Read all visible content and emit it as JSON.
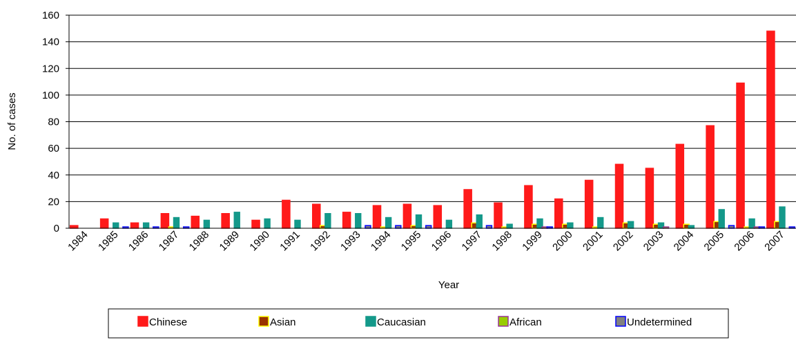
{
  "chart_data": {
    "type": "bar",
    "x_label": "Year",
    "y_label": "No. of cases",
    "categories": [
      "1984",
      "1985",
      "1986",
      "1987",
      "1988",
      "1989",
      "1990",
      "1991",
      "1992",
      "1993",
      "1994",
      "1995",
      "1996",
      "1997",
      "1998",
      "1999",
      "2000",
      "2001",
      "2002",
      "2003",
      "2004",
      "2005",
      "2006",
      "2007"
    ],
    "series": [
      {
        "name": "Chinese",
        "color": "#ff1a1a",
        "edgecolor": "#ff1a1a",
        "values": [
          2,
          7,
          4,
          11,
          9,
          11,
          6,
          21,
          18,
          12,
          17,
          18,
          17,
          29,
          19,
          32,
          22,
          36,
          48,
          45,
          63,
          77,
          109,
          148
        ]
      },
      {
        "name": "Asian",
        "color": "#993300",
        "edgecolor": "#ffff00",
        "values": [
          0,
          0,
          0,
          1,
          0,
          0,
          0,
          0,
          2,
          0,
          1,
          2,
          0,
          4,
          1,
          3,
          3,
          1,
          4,
          3,
          3,
          5,
          1,
          5
        ]
      },
      {
        "name": "Caucasian",
        "color": "#14998a",
        "edgecolor": "#14998a",
        "values": [
          0,
          4,
          4,
          8,
          6,
          12,
          7,
          6,
          11,
          11,
          8,
          10,
          6,
          10,
          3,
          7,
          4,
          8,
          5,
          4,
          2,
          14,
          7,
          16
        ]
      },
      {
        "name": "African",
        "color": "#99cc00",
        "edgecolor": "#993399",
        "values": [
          0,
          0,
          0,
          0,
          0,
          0,
          0,
          0,
          0,
          0,
          0,
          0,
          0,
          0,
          0,
          1,
          0,
          0,
          0,
          1,
          0,
          0,
          1,
          0
        ]
      },
      {
        "name": "Undetermined",
        "color": "#808080",
        "edgecolor": "#0000ff",
        "values": [
          0,
          1,
          1,
          1,
          0,
          0,
          0,
          0,
          0,
          2,
          2,
          2,
          0,
          2,
          0,
          1,
          0,
          0,
          0,
          0,
          0,
          2,
          1,
          1
        ]
      }
    ],
    "ylim": [
      0,
      160
    ],
    "yticks": [
      0,
      20,
      40,
      60,
      80,
      100,
      120,
      140,
      160
    ],
    "grid": true,
    "legend": "bottom"
  }
}
